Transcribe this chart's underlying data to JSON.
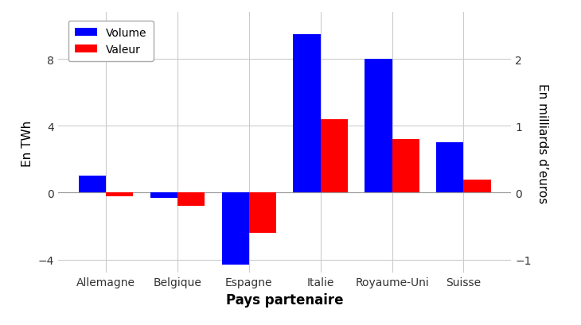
{
  "categories": [
    "Allemagne",
    "Belgique",
    "Espagne",
    "Italie",
    "Royaume-Uni",
    "Suisse"
  ],
  "volume": [
    1.0,
    -0.3,
    -4.3,
    9.5,
    8.0,
    3.0
  ],
  "valeur": [
    -0.05,
    -0.2,
    -0.6,
    1.1,
    0.8,
    0.2
  ],
  "volume_color": "#0000FF",
  "valeur_color": "#FF0000",
  "ylabel_left": "En TWh",
  "ylabel_right": "En milliards d’euros",
  "xlabel": "Pays partenaire",
  "ylim_left": [
    -4.8,
    10.8
  ],
  "ylim_right": [
    -1.2,
    2.7
  ],
  "yticks_left": [
    -4,
    0,
    4,
    8
  ],
  "yticks_right": [
    -1,
    0,
    1,
    2
  ],
  "background_color": "#FFFFFF",
  "grid_color": "#CCCCCC",
  "bar_width": 0.38
}
